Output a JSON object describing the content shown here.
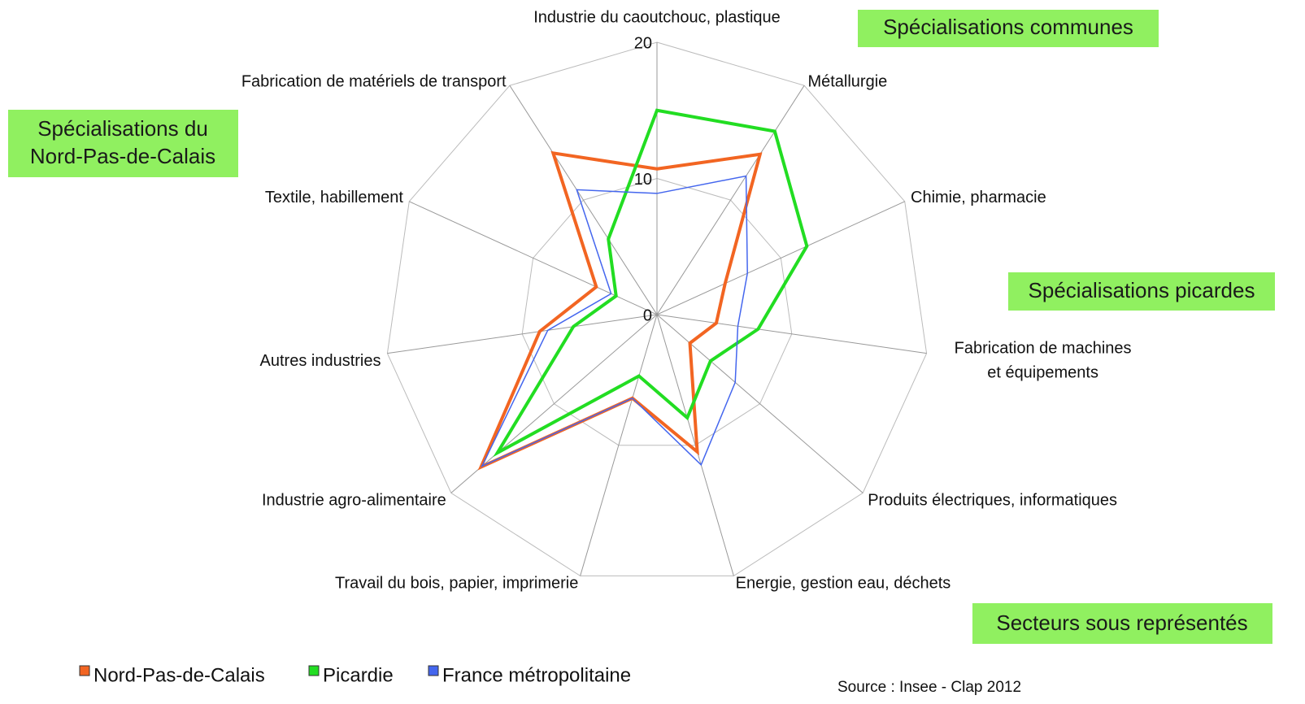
{
  "chart_data": {
    "type": "radar",
    "categories": [
      "Industrie du caoutchouc, plastique",
      "Métallurgie",
      "Chimie, pharmacie",
      "Fabrication de machines\net équipements",
      "Produits électriques, informatiques",
      "Energie, gestion eau, déchets",
      "Travail du bois, papier, imprimerie",
      "Industrie agro-alimentaire",
      "Autres industries",
      "Textile, habillement",
      "Fabrication de matériels de transport"
    ],
    "series": [
      {
        "name": "Nord-Pas-de-Calais",
        "color": "#f26522",
        "values": [
          10.7,
          14.0,
          5.5,
          4.4,
          3.2,
          10.5,
          6.4,
          17.1,
          8.7,
          4.9,
          14.1
        ]
      },
      {
        "name": "Picardie",
        "color": "#22dd22",
        "values": [
          15.0,
          16.0,
          12.1,
          7.5,
          5.2,
          7.9,
          4.7,
          15.5,
          6.2,
          3.3,
          6.6
        ]
      },
      {
        "name": "France métropolitaine",
        "color": "#4466ee",
        "values": [
          8.9,
          12.1,
          7.3,
          6.0,
          7.6,
          11.5,
          6.4,
          17.0,
          8.1,
          3.7,
          10.9
        ]
      }
    ],
    "rlim": [
      0,
      20
    ],
    "rticks": [
      0,
      10,
      20
    ],
    "grid": true,
    "annotations": [
      "Spécialisations communes",
      "Spécialisations du\nNord-Pas-de-Calais",
      "Spécialisations picardes",
      "Secteurs sous représentés"
    ],
    "source": "Source : Insee - Clap 2012"
  }
}
